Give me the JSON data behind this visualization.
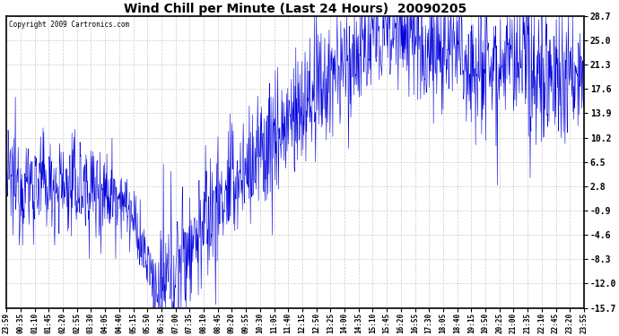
{
  "title": "Wind Chill per Minute (Last 24 Hours)  20090205",
  "copyright_text": "Copyright 2009 Cartronics.com",
  "line_color": "#0000DD",
  "background_color": "#ffffff",
  "plot_bg_color": "#ffffff",
  "yticks": [
    28.7,
    25.0,
    21.3,
    17.6,
    13.9,
    10.2,
    6.5,
    2.8,
    -0.9,
    -4.6,
    -8.3,
    -12.0,
    -15.7
  ],
  "ylim": [
    -15.7,
    28.7
  ],
  "x_labels": [
    "23:59",
    "00:35",
    "01:10",
    "01:45",
    "02:20",
    "02:55",
    "03:30",
    "04:05",
    "04:40",
    "05:15",
    "05:50",
    "06:25",
    "07:00",
    "07:35",
    "08:10",
    "08:45",
    "09:20",
    "09:55",
    "10:30",
    "11:05",
    "11:40",
    "12:15",
    "12:50",
    "13:25",
    "14:00",
    "14:35",
    "15:10",
    "15:45",
    "16:20",
    "16:55",
    "17:30",
    "18:05",
    "18:40",
    "19:15",
    "19:50",
    "20:25",
    "21:00",
    "21:35",
    "22:10",
    "22:45",
    "23:20",
    "23:55"
  ],
  "grid_color": "#cccccc",
  "grid_style": "--",
  "figwidth": 6.9,
  "figheight": 3.75,
  "dpi": 100
}
